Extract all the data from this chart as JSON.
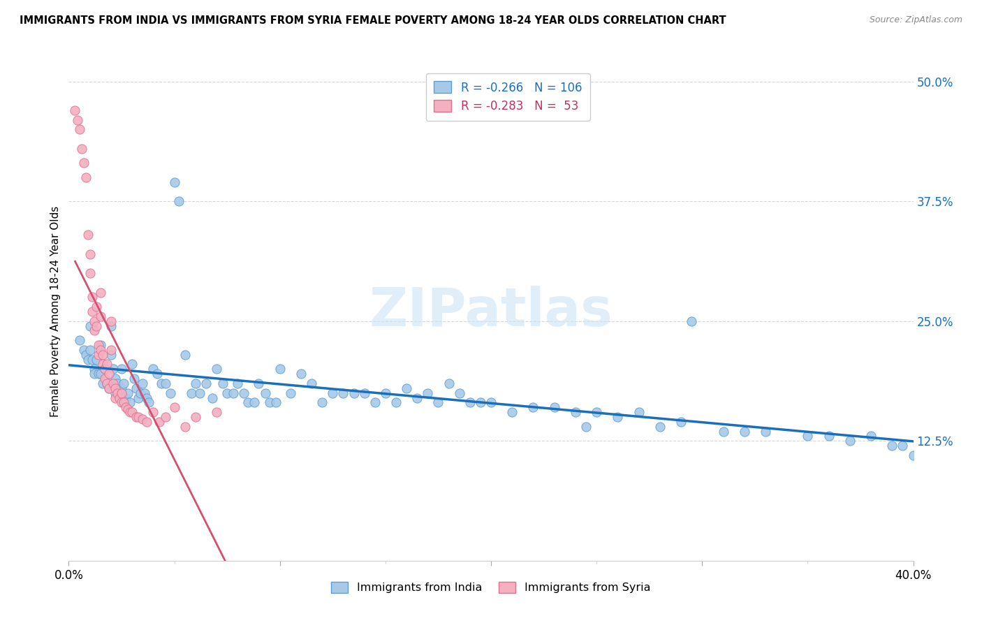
{
  "title": "IMMIGRANTS FROM INDIA VS IMMIGRANTS FROM SYRIA FEMALE POVERTY AMONG 18-24 YEAR OLDS CORRELATION CHART",
  "source": "Source: ZipAtlas.com",
  "ylabel": "Female Poverty Among 18-24 Year Olds",
  "ytick_labels": [
    "50.0%",
    "37.5%",
    "25.0%",
    "12.5%"
  ],
  "ytick_values": [
    0.5,
    0.375,
    0.25,
    0.125
  ],
  "xlim": [
    0.0,
    0.4
  ],
  "ylim": [
    0.0,
    0.52
  ],
  "india_color": "#a8c8e8",
  "india_edge_color": "#5a9fd4",
  "india_line_color": "#1a6fbd",
  "syria_color": "#f4b0c0",
  "syria_edge_color": "#e07090",
  "syria_line_color": "#d45070",
  "india_R": -0.266,
  "india_N": 106,
  "syria_R": -0.283,
  "syria_N": 53,
  "watermark": "ZIPatlas",
  "india_scatter_x": [
    0.005,
    0.007,
    0.008,
    0.009,
    0.01,
    0.01,
    0.011,
    0.012,
    0.012,
    0.013,
    0.014,
    0.015,
    0.015,
    0.016,
    0.017,
    0.018,
    0.019,
    0.02,
    0.02,
    0.021,
    0.022,
    0.022,
    0.023,
    0.024,
    0.025,
    0.025,
    0.026,
    0.027,
    0.028,
    0.029,
    0.03,
    0.031,
    0.032,
    0.033,
    0.034,
    0.035,
    0.036,
    0.037,
    0.038,
    0.04,
    0.042,
    0.044,
    0.046,
    0.048,
    0.05,
    0.052,
    0.055,
    0.058,
    0.06,
    0.062,
    0.065,
    0.068,
    0.07,
    0.073,
    0.075,
    0.078,
    0.08,
    0.083,
    0.085,
    0.088,
    0.09,
    0.093,
    0.095,
    0.098,
    0.1,
    0.105,
    0.11,
    0.115,
    0.12,
    0.125,
    0.13,
    0.135,
    0.14,
    0.145,
    0.15,
    0.155,
    0.16,
    0.165,
    0.17,
    0.175,
    0.18,
    0.185,
    0.19,
    0.195,
    0.2,
    0.21,
    0.22,
    0.23,
    0.24,
    0.25,
    0.26,
    0.27,
    0.28,
    0.29,
    0.31,
    0.32,
    0.33,
    0.35,
    0.36,
    0.37,
    0.38,
    0.39,
    0.395,
    0.4,
    0.245,
    0.295
  ],
  "india_scatter_y": [
    0.23,
    0.22,
    0.215,
    0.21,
    0.245,
    0.22,
    0.21,
    0.2,
    0.195,
    0.21,
    0.195,
    0.225,
    0.195,
    0.185,
    0.2,
    0.185,
    0.18,
    0.245,
    0.215,
    0.2,
    0.19,
    0.175,
    0.185,
    0.175,
    0.2,
    0.18,
    0.185,
    0.17,
    0.175,
    0.165,
    0.205,
    0.19,
    0.18,
    0.17,
    0.175,
    0.185,
    0.175,
    0.17,
    0.165,
    0.2,
    0.195,
    0.185,
    0.185,
    0.175,
    0.395,
    0.375,
    0.215,
    0.175,
    0.185,
    0.175,
    0.185,
    0.17,
    0.2,
    0.185,
    0.175,
    0.175,
    0.185,
    0.175,
    0.165,
    0.165,
    0.185,
    0.175,
    0.165,
    0.165,
    0.2,
    0.175,
    0.195,
    0.185,
    0.165,
    0.175,
    0.175,
    0.175,
    0.175,
    0.165,
    0.175,
    0.165,
    0.18,
    0.17,
    0.175,
    0.165,
    0.185,
    0.175,
    0.165,
    0.165,
    0.165,
    0.155,
    0.16,
    0.16,
    0.155,
    0.155,
    0.15,
    0.155,
    0.14,
    0.145,
    0.135,
    0.135,
    0.135,
    0.13,
    0.13,
    0.125,
    0.13,
    0.12,
    0.12,
    0.11,
    0.14,
    0.25
  ],
  "syria_scatter_x": [
    0.003,
    0.004,
    0.005,
    0.006,
    0.007,
    0.008,
    0.009,
    0.01,
    0.01,
    0.011,
    0.011,
    0.012,
    0.012,
    0.013,
    0.013,
    0.014,
    0.014,
    0.015,
    0.015,
    0.015,
    0.016,
    0.016,
    0.017,
    0.017,
    0.018,
    0.018,
    0.019,
    0.019,
    0.02,
    0.02,
    0.021,
    0.022,
    0.022,
    0.023,
    0.024,
    0.025,
    0.025,
    0.026,
    0.027,
    0.028,
    0.029,
    0.03,
    0.032,
    0.033,
    0.035,
    0.037,
    0.04,
    0.043,
    0.046,
    0.05,
    0.055,
    0.06,
    0.07
  ],
  "syria_scatter_y": [
    0.47,
    0.46,
    0.45,
    0.43,
    0.415,
    0.4,
    0.34,
    0.32,
    0.3,
    0.275,
    0.26,
    0.25,
    0.24,
    0.265,
    0.245,
    0.225,
    0.215,
    0.28,
    0.255,
    0.22,
    0.215,
    0.205,
    0.2,
    0.19,
    0.205,
    0.185,
    0.195,
    0.18,
    0.25,
    0.22,
    0.185,
    0.18,
    0.17,
    0.175,
    0.17,
    0.175,
    0.165,
    0.165,
    0.16,
    0.158,
    0.155,
    0.155,
    0.15,
    0.15,
    0.148,
    0.145,
    0.155,
    0.145,
    0.15,
    0.16,
    0.14,
    0.15,
    0.155
  ],
  "syria_trend_xlim": [
    0.003,
    0.09
  ],
  "india_trend_xlim": [
    0.0,
    0.4
  ]
}
